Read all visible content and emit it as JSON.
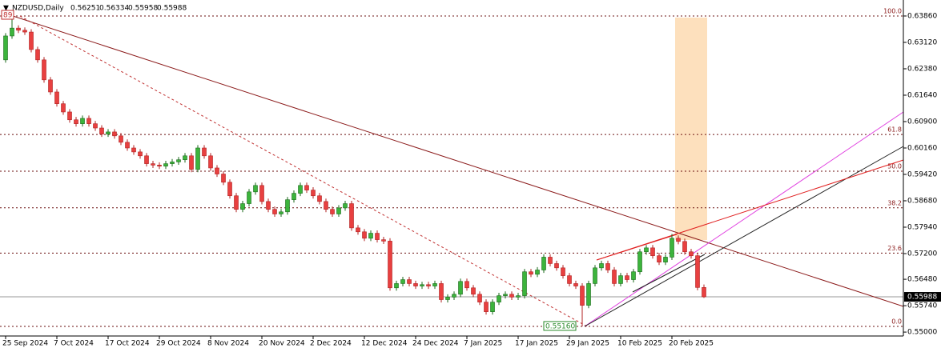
{
  "chart_data": {
    "type": "candlestick",
    "symbol": "NZDUSD,Daily",
    "header_ohlc": [
      0.56251,
      0.56334,
      0.55958,
      0.55988
    ],
    "open": [
      0.6263,
      0.633,
      0.6352,
      0.6346,
      0.6341,
      0.6292,
      0.6263,
      0.6207,
      0.6173,
      0.614,
      0.6117,
      0.6095,
      0.6084,
      0.6099,
      0.6084,
      0.6072,
      0.6055,
      0.6061,
      0.605,
      0.6032,
      0.6016,
      0.6005,
      0.5994,
      0.5972,
      0.5968,
      0.5965,
      0.5972,
      0.5977,
      0.5983,
      0.5994,
      0.5956,
      0.6016,
      0.5994,
      0.596,
      0.5943,
      0.592,
      0.5882,
      0.5844,
      0.586,
      0.5893,
      0.5911,
      0.5866,
      0.5844,
      0.5831,
      0.5837,
      0.5871,
      0.5889,
      0.5911,
      0.5898,
      0.5882,
      0.5866,
      0.5844,
      0.5831,
      0.5848,
      0.586,
      0.5792,
      0.5781,
      0.5763,
      0.5777,
      0.5759,
      0.5755,
      0.5624,
      0.5636,
      0.5647,
      0.5636,
      0.5629,
      0.5633,
      0.5629,
      0.5636,
      0.5591,
      0.5598,
      0.5606,
      0.5642,
      0.5624,
      0.5606,
      0.5584,
      0.5557,
      0.5584,
      0.5602,
      0.5606,
      0.5598,
      0.5602,
      0.5669,
      0.5662,
      0.5674,
      0.571,
      0.5692,
      0.568,
      0.5658,
      0.5636,
      0.5629,
      0.5575,
      0.5636,
      0.568,
      0.5692,
      0.5674,
      0.5636,
      0.5658,
      0.5647,
      0.5669,
      0.5725,
      0.5736,
      0.5714,
      0.5696,
      0.571,
      0.5763,
      0.5754,
      0.5725,
      0.5714,
      0.56251
    ],
    "high": [
      0.6338,
      0.6386,
      0.636,
      0.6354,
      0.6349,
      0.63,
      0.6271,
      0.6215,
      0.6181,
      0.6148,
      0.6125,
      0.6103,
      0.6107,
      0.6107,
      0.6092,
      0.608,
      0.6069,
      0.6069,
      0.6058,
      0.604,
      0.6024,
      0.6013,
      0.6002,
      0.598,
      0.5976,
      0.598,
      0.5985,
      0.5991,
      0.6002,
      0.6002,
      0.6024,
      0.6024,
      0.6002,
      0.5968,
      0.5951,
      0.5928,
      0.589,
      0.5868,
      0.5901,
      0.5919,
      0.5919,
      0.5874,
      0.5852,
      0.5845,
      0.5879,
      0.5897,
      0.5919,
      0.5919,
      0.5906,
      0.589,
      0.5874,
      0.5852,
      0.5856,
      0.5868,
      0.5868,
      0.58,
      0.5789,
      0.5785,
      0.5785,
      0.5767,
      0.5763,
      0.5644,
      0.5655,
      0.5655,
      0.5644,
      0.5641,
      0.5641,
      0.5644,
      0.5644,
      0.5606,
      0.5614,
      0.565,
      0.565,
      0.5632,
      0.5614,
      0.5592,
      0.5592,
      0.561,
      0.5614,
      0.5614,
      0.561,
      0.5677,
      0.5677,
      0.5682,
      0.5718,
      0.5718,
      0.57,
      0.5688,
      0.5666,
      0.5644,
      0.5637,
      0.5644,
      0.5688,
      0.57,
      0.57,
      0.5682,
      0.5666,
      0.5666,
      0.5677,
      0.5733,
      0.5744,
      0.5744,
      0.5722,
      0.5718,
      0.5775,
      0.5771,
      0.5762,
      0.5733,
      0.5722,
      0.56334
    ],
    "low": [
      0.6255,
      0.6322,
      0.6338,
      0.6333,
      0.6284,
      0.6255,
      0.6199,
      0.6165,
      0.6132,
      0.6109,
      0.6087,
      0.6076,
      0.6076,
      0.6076,
      0.6064,
      0.6047,
      0.6047,
      0.6042,
      0.6024,
      0.6008,
      0.5997,
      0.5986,
      0.5964,
      0.596,
      0.5957,
      0.5957,
      0.5964,
      0.5969,
      0.5975,
      0.5948,
      0.5948,
      0.5986,
      0.5952,
      0.5935,
      0.5912,
      0.5874,
      0.5836,
      0.5836,
      0.5852,
      0.5885,
      0.5858,
      0.5836,
      0.5823,
      0.5823,
      0.5829,
      0.5863,
      0.5881,
      0.589,
      0.5874,
      0.5858,
      0.5836,
      0.5823,
      0.5823,
      0.584,
      0.5784,
      0.5773,
      0.5755,
      0.5755,
      0.5751,
      0.5747,
      0.5616,
      0.5616,
      0.5628,
      0.5628,
      0.5621,
      0.5621,
      0.5621,
      0.5621,
      0.5583,
      0.5583,
      0.559,
      0.5598,
      0.5616,
      0.5598,
      0.5576,
      0.5549,
      0.5549,
      0.5576,
      0.5594,
      0.559,
      0.559,
      0.5594,
      0.5654,
      0.5654,
      0.5666,
      0.5684,
      0.5672,
      0.565,
      0.5628,
      0.5621,
      0.5516,
      0.5567,
      0.5628,
      0.5672,
      0.5666,
      0.5628,
      0.5628,
      0.5639,
      0.5639,
      0.5661,
      0.5717,
      0.5706,
      0.5688,
      0.5688,
      0.5702,
      0.5746,
      0.5717,
      0.5706,
      0.5617,
      0.55958
    ],
    "close": [
      0.633,
      0.6352,
      0.6346,
      0.6341,
      0.6292,
      0.6263,
      0.6207,
      0.6173,
      0.614,
      0.6117,
      0.6095,
      0.6084,
      0.6099,
      0.6084,
      0.6072,
      0.6055,
      0.6061,
      0.605,
      0.6032,
      0.6016,
      0.6005,
      0.5994,
      0.5972,
      0.5968,
      0.5965,
      0.5972,
      0.5977,
      0.5983,
      0.5994,
      0.5956,
      0.6016,
      0.5994,
      0.596,
      0.5943,
      0.592,
      0.5882,
      0.5844,
      0.586,
      0.5893,
      0.5911,
      0.5866,
      0.5844,
      0.5831,
      0.5837,
      0.5871,
      0.5889,
      0.5911,
      0.5898,
      0.5882,
      0.5866,
      0.5844,
      0.5831,
      0.5848,
      0.586,
      0.5792,
      0.5781,
      0.5763,
      0.5777,
      0.5759,
      0.5755,
      0.5624,
      0.5636,
      0.5647,
      0.5636,
      0.5629,
      0.5633,
      0.5629,
      0.5636,
      0.5591,
      0.5598,
      0.5606,
      0.5642,
      0.5624,
      0.5606,
      0.5584,
      0.5557,
      0.5584,
      0.5602,
      0.5606,
      0.5598,
      0.5602,
      0.5669,
      0.5662,
      0.5674,
      0.571,
      0.5692,
      0.568,
      0.5658,
      0.5636,
      0.5629,
      0.5575,
      0.5636,
      0.568,
      0.5692,
      0.5674,
      0.5636,
      0.5658,
      0.5647,
      0.5669,
      0.5725,
      0.5736,
      0.5714,
      0.5696,
      0.571,
      0.5763,
      0.5754,
      0.5725,
      0.5714,
      0.5625,
      0.55988
    ],
    "up_color": "#3cb43c",
    "down_color": "#e84040",
    "xlim": [
      -0.875,
      140.125
    ],
    "ylim": [
      0.5489,
      0.64308
    ],
    "xticks": [
      {
        "value": 0,
        "label": "25 Sep 2024"
      },
      {
        "value": 8,
        "label": "7 Oct 2024"
      },
      {
        "value": 16,
        "label": "17 Oct 2024"
      },
      {
        "value": 24,
        "label": "29 Oct 2024"
      },
      {
        "value": 32,
        "label": "8 Nov 2024"
      },
      {
        "value": 40,
        "label": "20 Nov 2024"
      },
      {
        "value": 48,
        "label": "2 Dec 2024"
      },
      {
        "value": 56,
        "label": "12 Dec 2024"
      },
      {
        "value": 64,
        "label": "24 Dec 2024"
      },
      {
        "value": 72,
        "label": "7 Jan 2025"
      },
      {
        "value": 80,
        "label": "17 Jan 2025"
      },
      {
        "value": 88,
        "label": "29 Jan 2025"
      },
      {
        "value": 96,
        "label": "10 Feb 2025"
      },
      {
        "value": 104,
        "label": "20 Feb 2025"
      }
    ],
    "yticks": [
      {
        "value": 0.6386,
        "label": "0.63860"
      },
      {
        "value": 0.6312,
        "label": "0.63120"
      },
      {
        "value": 0.6238,
        "label": "0.62380"
      },
      {
        "value": 0.6164,
        "label": "0.61640"
      },
      {
        "value": 0.609,
        "label": "0.60900"
      },
      {
        "value": 0.6016,
        "label": "0.60160"
      },
      {
        "value": 0.5942,
        "label": "0.59420"
      },
      {
        "value": 0.5868,
        "label": "0.58680"
      },
      {
        "value": 0.5794,
        "label": "0.57940"
      },
      {
        "value": 0.572,
        "label": "0.57200"
      },
      {
        "value": 0.5648,
        "label": "0.56480"
      },
      {
        "value": 0.5574,
        "label": "0.55740"
      },
      {
        "value": 0.55,
        "label": "0.55000"
      }
    ],
    "last_price": 0.55988,
    "fib": {
      "high": 0.6386,
      "low": {
        "value": 0.5516,
        "label": "0.55160"
      },
      "levels": [
        {
          "value": 0,
          "label": "0.0"
        },
        {
          "value": 23.6,
          "label": "23.6"
        },
        {
          "value": 38.2,
          "label": "38.2"
        },
        {
          "value": 50,
          "label": "50.0"
        },
        {
          "value": 61.8,
          "label": "61.8"
        },
        {
          "value": 100,
          "label": "100.0"
        }
      ]
    },
    "marker_label": "89"
  }
}
